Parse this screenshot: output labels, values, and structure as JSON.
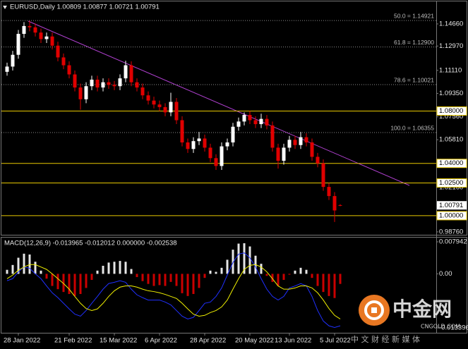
{
  "chart_data": [
    {
      "type": "candlestick",
      "title": "EURUSD,Daily  1.00809 1.00877 1.00721 1.00791",
      "categories": [
        null,
        null,
        "28 Jan 2022",
        null,
        null,
        null,
        null,
        null,
        null,
        null,
        null,
        "21 Feb 2022",
        null,
        null,
        null,
        null,
        null,
        null,
        null,
        "15 Mar 2022",
        null,
        null,
        null,
        null,
        null,
        null,
        null,
        "6 Apr 2022",
        null,
        null,
        null,
        null,
        null,
        null,
        null,
        "28 Apr 2022",
        null,
        null,
        null,
        null,
        null,
        null,
        null,
        "20 May 2022",
        null,
        null,
        null,
        null,
        null,
        null,
        "13 Jun 2022",
        null,
        null,
        null,
        null,
        null,
        null,
        null,
        "5 Jul 2022",
        null
      ],
      "values": [
        [
          1.11,
          1.117,
          1.107,
          1.114
        ],
        [
          1.114,
          1.126,
          1.111,
          1.123
        ],
        [
          1.123,
          1.142,
          1.12,
          1.139
        ],
        [
          1.139,
          1.148,
          1.136,
          1.145
        ],
        [
          1.145,
          1.149,
          1.141,
          1.144
        ],
        [
          1.144,
          1.147,
          1.137,
          1.14
        ],
        [
          1.14,
          1.143,
          1.132,
          1.135
        ],
        [
          1.135,
          1.14,
          1.132,
          1.137
        ],
        [
          1.137,
          1.14,
          1.127,
          1.13
        ],
        [
          1.13,
          1.133,
          1.118,
          1.121
        ],
        [
          1.121,
          1.124,
          1.112,
          1.115
        ],
        [
          1.115,
          1.118,
          1.105,
          1.108
        ],
        [
          1.108,
          1.111,
          1.095,
          1.098
        ],
        [
          1.098,
          1.101,
          1.081,
          1.089
        ],
        [
          1.089,
          1.102,
          1.086,
          1.099
        ],
        [
          1.099,
          1.107,
          1.096,
          1.104
        ],
        [
          1.104,
          1.107,
          1.095,
          1.098
        ],
        [
          1.098,
          1.105,
          1.095,
          1.102
        ],
        [
          1.102,
          1.105,
          1.097,
          1.1
        ],
        [
          1.1,
          1.103,
          1.096,
          1.099
        ],
        [
          1.099,
          1.108,
          1.096,
          1.105
        ],
        [
          1.105,
          1.1185,
          1.102,
          1.115
        ],
        [
          1.115,
          1.118,
          1.099,
          1.102
        ],
        [
          1.102,
          1.105,
          1.095,
          1.098
        ],
        [
          1.098,
          1.101,
          1.089,
          1.092
        ],
        [
          1.092,
          1.095,
          1.085,
          1.088
        ],
        [
          1.088,
          1.091,
          1.082,
          1.085
        ],
        [
          1.085,
          1.088,
          1.08,
          1.083
        ],
        [
          1.083,
          1.086,
          1.076,
          1.079
        ],
        [
          1.079,
          1.094,
          1.076,
          1.087
        ],
        [
          1.087,
          1.09,
          1.07,
          1.073
        ],
        [
          1.073,
          1.076,
          1.053,
          1.056
        ],
        [
          1.056,
          1.059,
          1.048,
          1.051
        ],
        [
          1.051,
          1.06,
          1.048,
          1.057
        ],
        [
          1.057,
          1.064,
          1.054,
          1.059
        ],
        [
          1.059,
          1.062,
          1.049,
          1.052
        ],
        [
          1.052,
          1.055,
          1.041,
          1.044
        ],
        [
          1.044,
          1.047,
          1.035,
          1.038
        ],
        [
          1.038,
          1.056,
          1.035,
          1.053
        ],
        [
          1.053,
          1.059,
          1.05,
          1.056
        ],
        [
          1.056,
          1.071,
          1.053,
          1.068
        ],
        [
          1.068,
          1.075,
          1.065,
          1.072
        ],
        [
          1.072,
          1.079,
          1.069,
          1.077
        ],
        [
          1.077,
          1.08,
          1.07,
          1.073
        ],
        [
          1.073,
          1.076,
          1.067,
          1.07
        ],
        [
          1.07,
          1.078,
          1.067,
          1.074
        ],
        [
          1.074,
          1.077,
          1.066,
          1.069
        ],
        [
          1.069,
          1.072,
          1.049,
          1.052
        ],
        [
          1.052,
          1.055,
          1.036,
          1.042
        ],
        [
          1.042,
          1.055,
          1.039,
          1.052
        ],
        [
          1.052,
          1.061,
          1.049,
          1.058
        ],
        [
          1.058,
          1.061,
          1.051,
          1.054
        ],
        [
          1.054,
          1.064,
          1.051,
          1.06
        ],
        [
          1.06,
          1.063,
          1.053,
          1.056
        ],
        [
          1.056,
          1.059,
          1.042,
          1.045
        ],
        [
          1.045,
          1.048,
          1.037,
          1.04
        ],
        [
          1.04,
          1.043,
          1.019,
          1.022
        ],
        [
          1.022,
          1.025,
          1.012,
          1.015
        ],
        [
          1.015,
          1.018,
          0.9952,
          1.004
        ],
        [
          1.00809,
          1.00877,
          1.00721,
          1.00791
        ]
      ],
      "up_color": "#ffffff",
      "down_color": "#e00000",
      "ylim": [
        0.9854,
        1.1622
      ],
      "yticks": [
        {
          "value": 1.1466,
          "label": "1.14660"
        },
        {
          "value": 1.1297,
          "label": "1.12970"
        },
        {
          "value": 1.1111,
          "label": "1.11110"
        },
        {
          "value": 1.0935,
          "label": "1.09350"
        },
        {
          "value": 1.0756,
          "label": "1.07560"
        },
        {
          "value": 1.0581,
          "label": "1.05810"
        },
        {
          "value": 1.0216,
          "label": "1.02160"
        },
        {
          "value": 0.9876,
          "label": "0.98760"
        }
      ],
      "levels": [
        {
          "value": 1.08,
          "label": "1.08000"
        },
        {
          "value": 1.04,
          "label": "1.04000"
        },
        {
          "value": 1.025,
          "label": "1.02500"
        },
        {
          "value": 1,
          "label": "1.00000"
        }
      ],
      "level_color": "#e8c800",
      "fibo_levels": [
        {
          "value": 1.14921,
          "label": "50.0 = 1.14921"
        },
        {
          "value": 1.129,
          "label": "61.8 = 1.12900"
        },
        {
          "value": 1.10021,
          "label": "78.6 = 1.10021"
        },
        {
          "value": 1.06355,
          "label": "100.0 = 1.06355"
        }
      ],
      "fibo_color": "#8c8c8c",
      "last_price": {
        "value": 1.00791,
        "label": "1.00791"
      },
      "grid": false
    },
    {
      "type": "macd",
      "title": "MACD(12,26,9) -0.013965 -0.012012 0.000000 -0.002538",
      "histogram": {
        "values": [
          0.001,
          0.0022,
          0.004,
          0.005,
          0.0048,
          0.003,
          0.0008,
          -0.0012,
          -0.003,
          -0.0038,
          -0.0045,
          -0.005,
          -0.0055,
          -0.005,
          -0.0035,
          -0.0015,
          0.0008,
          0.002,
          0.0028,
          0.003,
          0.0032,
          0.003,
          0.0012,
          -0.0008,
          -0.0018,
          -0.0025,
          -0.003,
          -0.0028,
          -0.003,
          -0.002,
          -0.003,
          -0.0048,
          -0.0055,
          -0.005,
          -0.0035,
          -0.001,
          0.0008,
          0.0005,
          0.0015,
          0.0035,
          0.006,
          0.0075,
          0.0076,
          0.0068,
          0.0045,
          0.0025,
          -0.0005,
          -0.002,
          -0.003,
          -0.0015,
          -0.0002,
          0.0008,
          0.0015,
          0.001,
          -0.001,
          -0.003,
          -0.0045,
          -0.0055,
          -0.006,
          -0.0025
        ],
        "up_color": "#ffffff",
        "down_color": "#e00000"
      },
      "series": [
        {
          "color": "#2030ff",
          "values": [
            -0.0017,
            -0.0012,
            0.0005,
            0.0017,
            0.0014,
            0,
            -0.0012,
            -0.003,
            -0.0047,
            -0.0059,
            -0.0073,
            -0.0087,
            -0.01,
            -0.0105,
            -0.0091,
            -0.0073,
            -0.0056,
            -0.0038,
            -0.0024,
            -0.0021,
            -0.0017,
            -0.0021,
            -0.0038,
            -0.0052,
            -0.0059,
            -0.0065,
            -0.0065,
            -0.0065,
            -0.007,
            -0.0077,
            -0.0091,
            -0.0105,
            -0.0112,
            -0.0108,
            -0.0091,
            -0.0073,
            -0.007,
            -0.0056,
            -0.0035,
            -0.0003,
            0.0028,
            0.0049,
            0.0052,
            0.004,
            0.0017,
            -0.0012,
            -0.0038,
            -0.0056,
            -0.0065,
            -0.0056,
            -0.0035,
            -0.003,
            -0.0024,
            -0.003,
            -0.0056,
            -0.0091,
            -0.0117,
            -0.0129,
            -0.0133,
            -0.0129
          ]
        },
        {
          "color": "#f0f000",
          "values": [
            -0.0012,
            -0.0003,
            0.0009,
            0.0017,
            0.0023,
            0.0023,
            0.0017,
            0.0011,
            0,
            -0.0012,
            -0.0024,
            -0.0038,
            -0.0056,
            -0.0073,
            -0.0086,
            -0.0091,
            -0.0087,
            -0.0073,
            -0.0056,
            -0.0042,
            -0.0033,
            -0.003,
            -0.003,
            -0.0033,
            -0.0038,
            -0.0042,
            -0.0044,
            -0.0047,
            -0.0051,
            -0.0056,
            -0.0061,
            -0.0073,
            -0.0087,
            -0.01,
            -0.0105,
            -0.0103,
            -0.0096,
            -0.0091,
            -0.0082,
            -0.0065,
            -0.0038,
            -0.0012,
            0.0011,
            0.0021,
            0.0023,
            0.0017,
            0.0005,
            -0.0012,
            -0.003,
            -0.0038,
            -0.0038,
            -0.0035,
            -0.003,
            -0.003,
            -0.0035,
            -0.0047,
            -0.0065,
            -0.0086,
            -0.0103,
            -0.0112
          ]
        }
      ],
      "ylim": [
        -0.013396,
        0.007942
      ],
      "yticks": [
        0.007942,
        {
          "value": 0,
          "label": "0.00"
        },
        -0.013396
      ]
    }
  ],
  "watermark": {
    "name": "中金网",
    "site": "CNGOLD.COM",
    "tagline": "中 文 财 经 新 媒 体"
  }
}
